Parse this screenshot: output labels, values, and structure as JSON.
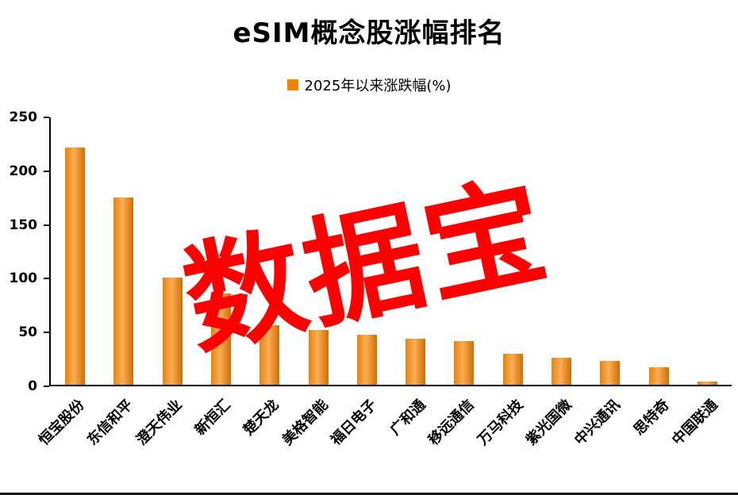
{
  "chart_data": {
    "type": "bar",
    "title": "eSIM概念股涨幅排名",
    "legend_label": "2025年以来涨跌幅(%)",
    "legend_position": "top",
    "watermark": "数据宝",
    "categories": [
      "恒宝股份",
      "东信和平",
      "澄天伟业",
      "新恒汇",
      "楚天龙",
      "美格智能",
      "福日电子",
      "广和通",
      "移远通信",
      "万马科技",
      "紫光国微",
      "中兴通讯",
      "思特奇",
      "中国联通"
    ],
    "values": [
      222,
      175,
      100,
      85,
      56,
      51,
      47,
      43,
      41,
      29,
      25,
      22,
      16,
      3
    ],
    "xlabel": "",
    "ylabel": "",
    "ylim": [
      0,
      250
    ],
    "yticks": [
      0,
      50,
      100,
      150,
      200,
      250
    ],
    "grid": false,
    "colors": {
      "bar_edge_left": "#e8820e",
      "bar_mid": "#fbae54",
      "bar_edge_right": "#d26d04",
      "legend_swatch": "#f08300",
      "watermark": "#ff0000",
      "axis": "#000000"
    }
  }
}
